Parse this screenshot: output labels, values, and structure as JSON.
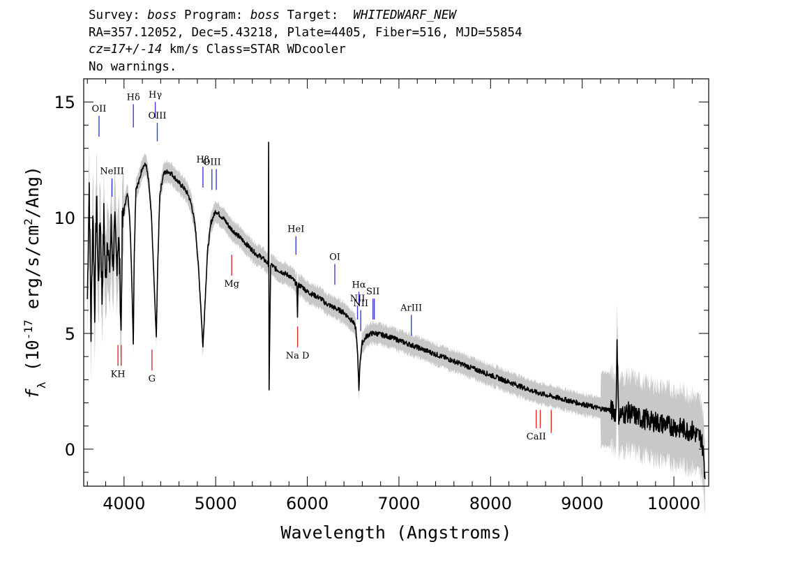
{
  "header": {
    "survey_label": "Survey: ",
    "survey": "boss",
    "program_label": " Program: ",
    "program": "boss",
    "target_label": " Target:  ",
    "target": "WHITEDWARF_NEW",
    "line2": "RA=357.12052, Dec=5.43218, Plate=4405, Fiber=516, MJD=55854",
    "cz_value": "cz=17+/-14",
    "cz_rest": " km/s Class=STAR WDcooler",
    "warnings": "No warnings."
  },
  "colors": {
    "flux": "#000000",
    "error_band": "#c8c8c8",
    "emission_marker": "#3b3bd6",
    "absorption_marker": "#e02a2a"
  },
  "chart_data": {
    "type": "line",
    "title": "",
    "xlabel": "Wavelength (Angstroms)",
    "ylabel": "f_λ (10^-17 erg/s/cm^2/Ang)",
    "xlim": [
      3560,
      10380
    ],
    "ylim": [
      -1.6,
      16
    ],
    "xticks": [
      4000,
      5000,
      6000,
      7000,
      8000,
      9000,
      10000
    ],
    "yticks": [
      0,
      5,
      10,
      15
    ],
    "grid": false,
    "series": [
      {
        "x": [
          3600,
          3620,
          3640,
          3660,
          3680,
          3700,
          3720,
          3740,
          3760,
          3780,
          3800,
          3820,
          3840,
          3860,
          3880,
          3900,
          3920,
          3940,
          3955,
          3968,
          3980,
          4000,
          4020,
          4040,
          4060,
          4080,
          4090,
          4101,
          4112,
          4130,
          4160,
          4200,
          4240,
          4270,
          4300,
          4320,
          4340,
          4352,
          4365,
          4390,
          4430,
          4480,
          4520,
          4560,
          4600,
          4650,
          4700,
          4740,
          4780,
          4810,
          4840,
          4861,
          4880,
          4910,
          4950,
          5000,
          5050,
          5100,
          5150,
          5200,
          5250,
          5300,
          5350,
          5400,
          5450,
          5500,
          5550,
          5575,
          5578,
          5583,
          5600,
          5650,
          5700,
          5750,
          5800,
          5850,
          5885,
          5893,
          5900,
          5950,
          6000,
          6050,
          6100,
          6150,
          6200,
          6250,
          6300,
          6350,
          6400,
          6450,
          6500,
          6530,
          6550,
          6563,
          6575,
          6600,
          6650,
          6700,
          6750,
          6800,
          6900,
          7000,
          7100,
          7200,
          7300,
          7400,
          7500,
          7600,
          7700,
          7800,
          7900,
          8000,
          8100,
          8200,
          8300,
          8400,
          8500,
          8600,
          8700,
          8800,
          8900,
          9000,
          9100,
          9200,
          9300,
          9370,
          9380,
          9395,
          9450,
          9500,
          9550,
          9600,
          9650,
          9700,
          9750,
          9800,
          9850,
          9900,
          9950,
          10000,
          10050,
          10100,
          10150,
          10200,
          10250,
          10300,
          10330,
          10340
        ],
        "y": [
          6.5,
          11.5,
          5.0,
          10.5,
          6.0,
          11.0,
          7.0,
          10.2,
          6.5,
          10.0,
          7.0,
          9.5,
          7.5,
          9.6,
          8.0,
          9.5,
          8.0,
          9.3,
          7.5,
          5.0,
          9.5,
          10.3,
          10.8,
          11.0,
          10.2,
          8.0,
          6.5,
          4.6,
          8.5,
          11.3,
          11.5,
          12.2,
          12.3,
          11.5,
          10.0,
          8.0,
          6.0,
          4.8,
          7.5,
          11.0,
          11.9,
          12.0,
          11.9,
          11.7,
          11.5,
          11.3,
          11.0,
          10.5,
          9.5,
          8.0,
          6.0,
          4.4,
          6.0,
          8.5,
          9.8,
          10.3,
          10.1,
          9.9,
          9.6,
          9.4,
          9.2,
          9.0,
          8.8,
          8.6,
          8.4,
          8.3,
          8.1,
          8.0,
          13.3,
          2.6,
          8.0,
          7.8,
          7.7,
          7.6,
          7.5,
          7.3,
          7.1,
          5.8,
          7.1,
          7.0,
          6.8,
          6.7,
          6.6,
          6.5,
          6.3,
          6.2,
          6.1,
          6.0,
          5.9,
          5.7,
          5.5,
          5.2,
          4.0,
          2.6,
          3.8,
          4.6,
          4.9,
          5.0,
          5.0,
          4.95,
          4.85,
          4.7,
          4.55,
          4.4,
          4.25,
          4.1,
          3.95,
          3.8,
          3.65,
          3.5,
          3.35,
          3.2,
          3.05,
          2.9,
          2.75,
          2.6,
          2.45,
          2.35,
          2.25,
          2.15,
          2.05,
          1.95,
          1.85,
          1.75,
          1.7,
          1.6,
          5.0,
          1.5,
          1.5,
          1.6,
          1.5,
          1.4,
          1.3,
          1.3,
          1.2,
          1.2,
          1.1,
          1.1,
          1.0,
          1.0,
          0.9,
          0.9,
          0.8,
          0.8,
          0.6,
          0.5,
          -0.5,
          -1.3
        ]
      }
    ],
    "line_markers": [
      {
        "label": "OII",
        "wavelength": 3727,
        "kind": "emission",
        "y1": 14.4,
        "y2": 13.5
      },
      {
        "label": "Hδ",
        "wavelength": 4102,
        "kind": "emission",
        "y1": 14.9,
        "y2": 13.9
      },
      {
        "label": "Hγ",
        "wavelength": 4341,
        "kind": "emission",
        "y1": 15.0,
        "y2": 14.3
      },
      {
        "label": "OIII",
        "wavelength": 4363,
        "kind": "emission",
        "y1": 14.1,
        "y2": 13.3
      },
      {
        "label": "NeIII",
        "wavelength": 3869,
        "kind": "emission",
        "y1": 11.7,
        "y2": 10.9
      },
      {
        "label": "Hβ",
        "wavelength": 4861,
        "kind": "emission",
        "y1": 12.2,
        "y2": 11.3
      },
      {
        "label": "OIII",
        "wavelength": 4959,
        "kind": "emission",
        "y1": 12.1,
        "y2": 11.2
      },
      {
        "label": "",
        "wavelength": 5007,
        "kind": "emission",
        "y1": 12.1,
        "y2": 11.2
      },
      {
        "label": "HeI",
        "wavelength": 5876,
        "kind": "emission",
        "y1": 9.2,
        "y2": 8.4
      },
      {
        "label": "OI",
        "wavelength": 6300,
        "kind": "emission",
        "y1": 8.0,
        "y2": 7.1
      },
      {
        "label": "NII",
        "wavelength": 6548,
        "kind": "emission",
        "y1": 6.2,
        "y2": 5.6
      },
      {
        "label": "Hα",
        "wavelength": 6563,
        "kind": "emission",
        "y1": 6.8,
        "y2": 6.2
      },
      {
        "label": "NII",
        "wavelength": 6583,
        "kind": "emission",
        "y1": 6.0,
        "y2": 5.1
      },
      {
        "label": "SII",
        "wavelength": 6716,
        "kind": "emission",
        "y1": 6.5,
        "y2": 5.6
      },
      {
        "label": "",
        "wavelength": 6731,
        "kind": "emission",
        "y1": 6.5,
        "y2": 5.6
      },
      {
        "label": "ArIII",
        "wavelength": 7135,
        "kind": "emission",
        "y1": 5.8,
        "y2": 4.9
      },
      {
        "label": "KH",
        "wavelength": 3934,
        "kind": "absorption",
        "y1": 4.5,
        "y2": 3.6
      },
      {
        "label": "",
        "wavelength": 3969,
        "kind": "absorption",
        "y1": 4.5,
        "y2": 3.6
      },
      {
        "label": "G",
        "wavelength": 4305,
        "kind": "absorption",
        "y1": 4.3,
        "y2": 3.4
      },
      {
        "label": "Mg",
        "wavelength": 5175,
        "kind": "absorption",
        "y1": 8.4,
        "y2": 7.5
      },
      {
        "label": "Na D",
        "wavelength": 5894,
        "kind": "absorption",
        "y1": 5.3,
        "y2": 4.4
      },
      {
        "label": "CaII",
        "wavelength": 8498,
        "kind": "absorption",
        "y1": 1.7,
        "y2": 0.9
      },
      {
        "label": "",
        "wavelength": 8542,
        "kind": "absorption",
        "y1": 1.7,
        "y2": 0.9
      },
      {
        "label": "",
        "wavelength": 8662,
        "kind": "absorption",
        "y1": 1.7,
        "y2": 0.7
      }
    ]
  }
}
